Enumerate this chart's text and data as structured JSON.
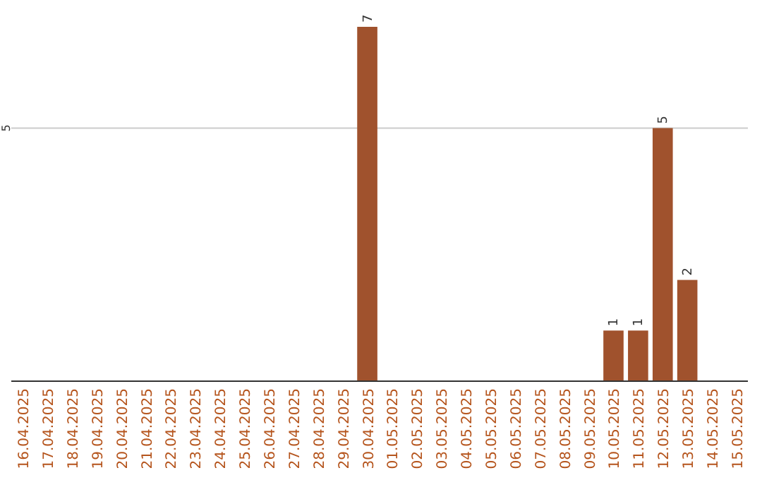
{
  "chart_data": {
    "type": "bar",
    "categories": [
      "16.04.2025",
      "17.04.2025",
      "18.04.2025",
      "19.04.2025",
      "20.04.2025",
      "21.04.2025",
      "22.04.2025",
      "23.04.2025",
      "24.04.2025",
      "25.04.2025",
      "26.04.2025",
      "27.04.2025",
      "28.04.2025",
      "29.04.2025",
      "30.04.2025",
      "01.05.2025",
      "02.05.2025",
      "03.05.2025",
      "04.05.2025",
      "05.05.2025",
      "06.05.2025",
      "07.05.2025",
      "08.05.2025",
      "09.05.2025",
      "10.05.2025",
      "11.05.2025",
      "12.05.2025",
      "13.05.2025",
      "14.05.2025",
      "15.05.2025"
    ],
    "values": [
      null,
      null,
      null,
      null,
      null,
      null,
      null,
      null,
      null,
      null,
      null,
      null,
      null,
      null,
      7,
      null,
      null,
      null,
      null,
      null,
      null,
      null,
      null,
      null,
      1,
      1,
      5,
      2,
      null,
      null
    ],
    "color": "#a0522d",
    "ylim": [
      0,
      7
    ],
    "yticks": [
      5
    ],
    "grid": "y",
    "data_labels": true
  }
}
